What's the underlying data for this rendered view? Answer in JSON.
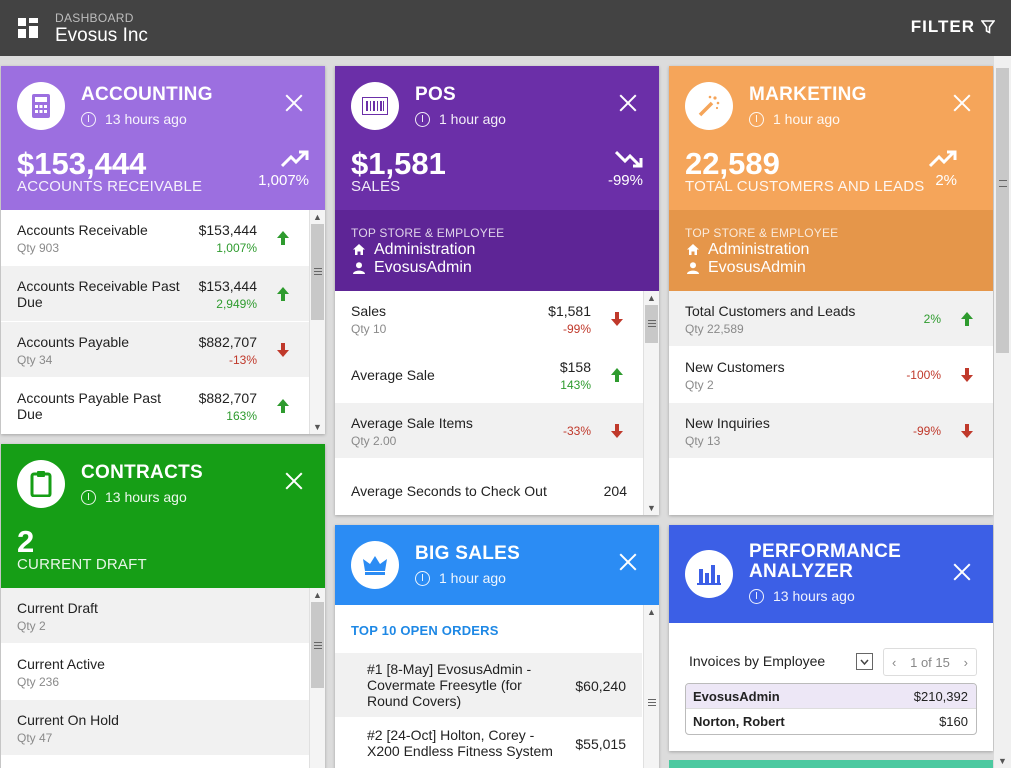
{
  "header": {
    "breadcrumb": "DASHBOARD",
    "company": "Evosus Inc",
    "filter_label": "FILTER"
  },
  "colors": {
    "accounting": "#9c6fe0",
    "pos": "#6b2fa8",
    "pos_sub": "#5e2596",
    "marketing": "#f5a55a",
    "marketing_sub": "#e5964a",
    "contracts": "#169e16",
    "bigsales": "#2b8cf4",
    "performance": "#3c5fe6",
    "positive": "#2e9b2e",
    "negative": "#c0392b"
  },
  "accounting": {
    "title": "ACCOUNTING",
    "time": "13 hours ago",
    "amount": "$153,444",
    "amount_label": "ACCOUNTS RECEIVABLE",
    "trend": "1,007%",
    "rows": [
      {
        "name": "Accounts Receivable",
        "qty": "Qty 903",
        "value": "$153,444",
        "pct": "1,007%",
        "dir": "up"
      },
      {
        "name": "Accounts Receivable Past Due",
        "qty": "",
        "value": "$153,444",
        "pct": "2,949%",
        "dir": "up"
      },
      {
        "name": "Accounts Payable",
        "qty": "Qty 34",
        "value": "$882,707",
        "pct": "-13%",
        "dir": "down"
      },
      {
        "name": "Accounts Payable Past Due",
        "qty": "",
        "value": "$882,707",
        "pct": "163%",
        "dir": "up"
      }
    ]
  },
  "pos": {
    "title": "POS",
    "time": "1 hour ago",
    "amount": "$1,581",
    "amount_label": "SALES",
    "trend": "-99%",
    "top_label": "TOP STORE & EMPLOYEE",
    "top_store": "Administration",
    "top_employee": "EvosusAdmin",
    "rows": [
      {
        "name": "Sales",
        "qty": "Qty 10",
        "value": "$1,581",
        "pct": "-99%",
        "dir": "down"
      },
      {
        "name": "Average Sale",
        "qty": "",
        "value": "$158",
        "pct": "143%",
        "dir": "up"
      },
      {
        "name": "Average Sale Items",
        "qty": "Qty 2.00",
        "value": "",
        "pct": "-33%",
        "dir": "down"
      },
      {
        "name": "Average Seconds to Check Out",
        "qty": "",
        "value": "204",
        "pct": "",
        "dir": ""
      }
    ]
  },
  "marketing": {
    "title": "MARKETING",
    "time": "1 hour ago",
    "amount": "22,589",
    "amount_label": "TOTAL CUSTOMERS AND LEADS",
    "trend": "2%",
    "top_label": "TOP STORE & EMPLOYEE",
    "top_store": "Administration",
    "top_employee": "EvosusAdmin",
    "rows": [
      {
        "name": "Total Customers and Leads",
        "qty": "Qty 22,589",
        "pct": "2%",
        "dir": "up"
      },
      {
        "name": "New Customers",
        "qty": "Qty 2",
        "pct": "-100%",
        "dir": "down"
      },
      {
        "name": "New Inquiries",
        "qty": "Qty 13",
        "pct": "-99%",
        "dir": "down"
      }
    ]
  },
  "contracts": {
    "title": "CONTRACTS",
    "time": "13 hours ago",
    "amount": "2",
    "amount_label": "CURRENT DRAFT",
    "rows": [
      {
        "name": "Current Draft",
        "qty": "Qty 2"
      },
      {
        "name": "Current Active",
        "qty": "Qty 236"
      },
      {
        "name": "Current On Hold",
        "qty": "Qty 47"
      }
    ]
  },
  "bigsales": {
    "title": "BIG SALES",
    "time": "1 hour ago",
    "section": "TOP 10 OPEN ORDERS",
    "orders": [
      {
        "line1": "#1 [8-May] EvosusAdmin -",
        "line2": "Covermate Freesytle (for",
        "line3": "Round Covers)",
        "amount": "$60,240"
      },
      {
        "line1": "#2 [24-Oct] Holton, Corey -",
        "line2": "X200 Endless Fitness System",
        "line3": "",
        "amount": "$55,015"
      }
    ]
  },
  "performance": {
    "title_line1": "PERFORMANCE",
    "title_line2": "ANALYZER",
    "time": "13 hours ago",
    "select_label": "Invoices by Employee",
    "pager": "1 of 15",
    "rows": [
      {
        "name": "EvosusAdmin",
        "amount": "$210,392"
      },
      {
        "name": "Norton, Robert",
        "amount": "$160"
      }
    ]
  }
}
